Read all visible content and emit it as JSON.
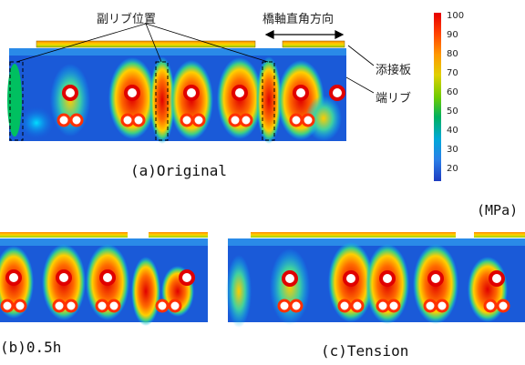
{
  "annotations": {
    "sub_rib_position": "副リブ位置",
    "transverse_direction": "橋軸直角方向",
    "splice_plate": "添接板",
    "end_rib": "端リブ"
  },
  "captions": {
    "a": "(a)Original",
    "b": "(b)0.5h",
    "c": "(c)Tension"
  },
  "colorbar": {
    "unit": "(MPa)",
    "ticks": [
      "100",
      "90",
      "80",
      "70",
      "60",
      "50",
      "40",
      "30",
      "20"
    ],
    "colors": [
      "#e60000",
      "#ff5a00",
      "#ff9900",
      "#d8c800",
      "#7ccc00",
      "#00b060",
      "#00a0c8",
      "#2878e6",
      "#1e40c8"
    ]
  }
}
